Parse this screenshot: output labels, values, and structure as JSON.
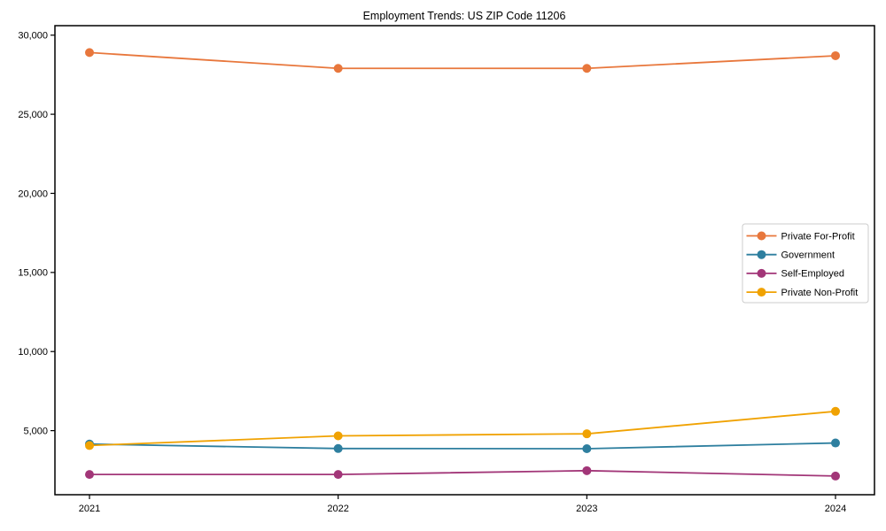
{
  "title": "Employment Trends: US ZIP Code 11206",
  "chart_data": {
    "type": "line",
    "title": "Employment Trends: US ZIP Code 11206",
    "categories": [
      "2021",
      "2022",
      "2023",
      "2024"
    ],
    "series": [
      {
        "name": "Private For-Profit",
        "color": "#E8773C",
        "values": [
          28900,
          27900,
          27900,
          28700
        ]
      },
      {
        "name": "Government",
        "color": "#2E7F9F",
        "values": [
          4150,
          3870,
          3860,
          4220
        ]
      },
      {
        "name": "Self-Employed",
        "color": "#A23678",
        "values": [
          2230,
          2230,
          2470,
          2130
        ]
      },
      {
        "name": "Private Non-Profit",
        "color": "#F0A202",
        "values": [
          4060,
          4670,
          4800,
          6220
        ]
      }
    ],
    "xlabel": "",
    "ylabel": "",
    "ylim": [
      950,
      30600
    ],
    "yticks": [
      5000,
      10000,
      15000,
      20000,
      25000,
      30000
    ],
    "ytick_labels": [
      "5,000",
      "10,000",
      "15,000",
      "20,000",
      "25,000",
      "30,000"
    ],
    "grid": false,
    "legend_position": "right-middle",
    "marker": "circle",
    "axis_color": "#000000",
    "legend_border_color": "#cccccc",
    "background_color": "#ffffff"
  }
}
